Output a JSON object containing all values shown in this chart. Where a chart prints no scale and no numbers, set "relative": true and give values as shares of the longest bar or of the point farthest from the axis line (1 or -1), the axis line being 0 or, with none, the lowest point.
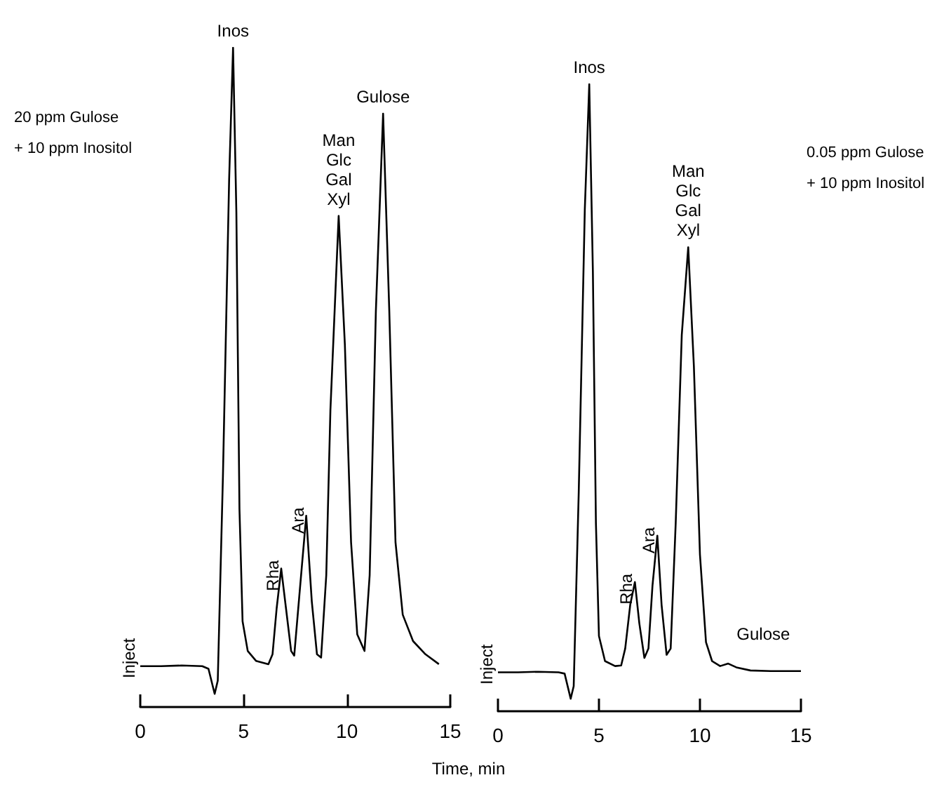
{
  "chart_data": [
    {
      "type": "line",
      "title": "20 ppm Gulose\n+ 10 ppm Inositol",
      "xlabel": "Time, min",
      "relative": true,
      "xlim": [
        0,
        15
      ],
      "xticks": [
        0,
        5,
        10,
        15
      ],
      "annotations": [
        {
          "text": "Inject",
          "x": 0,
          "y": 0.062
        },
        {
          "text": "Inos",
          "x": 4.49,
          "y": 1
        },
        {
          "text": "Rha",
          "x": 6.82,
          "y": 0.21
        },
        {
          "text": "Ara",
          "x": 8.03,
          "y": 0.29
        },
        {
          "text": "Man\nGlc\nGal\nXyl",
          "x": 9.6,
          "y": 0.745
        },
        {
          "text": "Gulose",
          "x": 11.75,
          "y": 0.9
        }
      ],
      "x": [
        0,
        1,
        2,
        3,
        3.3,
        3.6,
        3.75,
        4.0,
        4.3,
        4.49,
        4.65,
        4.8,
        4.95,
        5.2,
        5.6,
        6.2,
        6.4,
        6.6,
        6.82,
        7.05,
        7.3,
        7.45,
        7.7,
        8.03,
        8.3,
        8.55,
        8.75,
        9.0,
        9.2,
        9.6,
        9.9,
        10.2,
        10.5,
        10.85,
        11.1,
        11.4,
        11.75,
        12.05,
        12.35,
        12.7,
        13.2,
        13.8,
        14.45
      ],
      "series": [
        {
          "color": "#000000",
          "values": [
            0.062,
            0.062,
            0.063,
            0.062,
            0.058,
            0.02,
            0.04,
            0.35,
            0.8,
            1,
            0.75,
            0.3,
            0.13,
            0.085,
            0.07,
            0.065,
            0.08,
            0.15,
            0.21,
            0.15,
            0.085,
            0.078,
            0.17,
            0.29,
            0.16,
            0.08,
            0.075,
            0.2,
            0.45,
            0.745,
            0.55,
            0.25,
            0.11,
            0.085,
            0.2,
            0.6,
            0.9,
            0.6,
            0.25,
            0.14,
            0.1,
            0.08,
            0.065
          ]
        }
      ]
    },
    {
      "type": "line",
      "title": "0.05 ppm Gulose\n+ 10 ppm Inositol",
      "relative": true,
      "xlim": [
        0,
        15
      ],
      "xticks": [
        0,
        5,
        10,
        15
      ],
      "annotations": [
        {
          "text": "Inject",
          "x": 0,
          "y": 0.062
        },
        {
          "text": "Inos",
          "x": 4.52,
          "y": 1
        },
        {
          "text": "Rha",
          "x": 6.78,
          "y": 0.206
        },
        {
          "text": "Ara",
          "x": 7.89,
          "y": 0.28
        },
        {
          "text": "Man\nGlc\nGal\nXyl",
          "x": 9.42,
          "y": 0.74
        },
        {
          "text": "Gulose",
          "x": 11.4,
          "y": 0.076
        }
      ],
      "x": [
        0,
        1,
        2,
        3,
        3.3,
        3.6,
        3.75,
        4.0,
        4.3,
        4.52,
        4.7,
        4.85,
        5.0,
        5.3,
        5.8,
        6.1,
        6.3,
        6.55,
        6.78,
        7.0,
        7.25,
        7.45,
        7.65,
        7.89,
        8.1,
        8.35,
        8.55,
        8.8,
        9.1,
        9.42,
        9.7,
        10.0,
        10.3,
        10.6,
        11.0,
        11.4,
        11.8,
        12.5,
        13.5,
        15
      ],
      "series": [
        {
          "color": "#000000",
          "values": [
            0.062,
            0.062,
            0.063,
            0.062,
            0.06,
            0.02,
            0.04,
            0.35,
            0.8,
            1,
            0.7,
            0.3,
            0.12,
            0.08,
            0.072,
            0.073,
            0.1,
            0.17,
            0.206,
            0.14,
            0.085,
            0.1,
            0.2,
            0.28,
            0.17,
            0.09,
            0.1,
            0.3,
            0.6,
            0.74,
            0.55,
            0.25,
            0.11,
            0.08,
            0.072,
            0.076,
            0.07,
            0.065,
            0.064,
            0.064
          ]
        }
      ]
    }
  ]
}
